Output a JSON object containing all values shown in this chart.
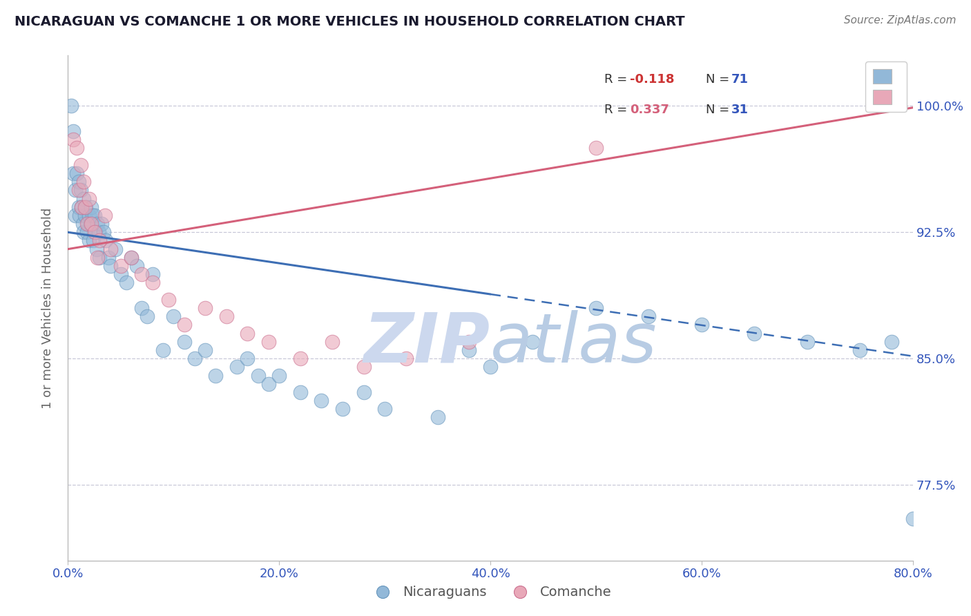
{
  "title": "NICARAGUAN VS COMANCHE 1 OR MORE VEHICLES IN HOUSEHOLD CORRELATION CHART",
  "source_text": "Source: ZipAtlas.com",
  "ylabel": "1 or more Vehicles in Household",
  "xlim": [
    0.0,
    80.0
  ],
  "ylim": [
    73.0,
    103.0
  ],
  "xtick_vals": [
    0.0,
    20.0,
    40.0,
    60.0,
    80.0
  ],
  "xtick_labels": [
    "0.0%",
    "20.0%",
    "40.0%",
    "60.0%",
    "80.0%"
  ],
  "ytick_vals": [
    77.5,
    85.0,
    92.5,
    100.0
  ],
  "ytick_labels": [
    "77.5%",
    "85.0%",
    "92.5%",
    "100.0%"
  ],
  "legend_r1": "R = -0.118",
  "legend_n1": "N = 71",
  "legend_r2": "R = 0.337",
  "legend_n2": "N = 31",
  "legend_labels_bottom": [
    "Nicaraguans",
    "Comanche"
  ],
  "blue_color": "#92b8d8",
  "blue_edge_color": "#6896bc",
  "pink_color": "#e8a8b8",
  "pink_edge_color": "#cc7090",
  "blue_line_color": "#3d6eb4",
  "pink_line_color": "#d4607a",
  "tick_color": "#3355bb",
  "grid_color": "#c8c8d8",
  "background_color": "#ffffff",
  "watermark_color": "#ccd8ee",
  "legend_r_color": "#cc3333",
  "legend_n_color": "#3355bb",
  "blue_intercept": 92.5,
  "blue_slope": -0.092,
  "pink_intercept": 91.5,
  "pink_slope": 0.105,
  "blue_x": [
    0.3,
    0.5,
    0.5,
    0.7,
    0.7,
    0.8,
    1.0,
    1.0,
    1.1,
    1.2,
    1.3,
    1.4,
    1.5,
    1.5,
    1.6,
    1.7,
    1.8,
    1.9,
    2.0,
    2.0,
    2.1,
    2.2,
    2.3,
    2.4,
    2.5,
    2.6,
    2.7,
    2.8,
    2.9,
    3.0,
    3.2,
    3.4,
    3.6,
    3.8,
    4.0,
    4.5,
    5.0,
    5.5,
    6.0,
    6.5,
    7.0,
    7.5,
    8.0,
    9.0,
    10.0,
    11.0,
    12.0,
    13.0,
    14.0,
    16.0,
    17.0,
    18.0,
    19.0,
    20.0,
    22.0,
    24.0,
    26.0,
    28.0,
    30.0,
    35.0,
    38.0,
    40.0,
    44.0,
    50.0,
    55.0,
    60.0,
    65.0,
    70.0,
    75.0,
    78.0,
    80.0
  ],
  "blue_y": [
    100.0,
    98.5,
    96.0,
    95.0,
    93.5,
    96.0,
    95.5,
    94.0,
    93.5,
    95.0,
    94.0,
    93.0,
    94.5,
    92.5,
    93.5,
    94.0,
    92.5,
    93.0,
    93.5,
    92.0,
    93.0,
    94.0,
    93.5,
    92.0,
    93.5,
    92.5,
    91.5,
    93.0,
    92.5,
    91.0,
    93.0,
    92.5,
    92.0,
    91.0,
    90.5,
    91.5,
    90.0,
    89.5,
    91.0,
    90.5,
    88.0,
    87.5,
    90.0,
    85.5,
    87.5,
    86.0,
    85.0,
    85.5,
    84.0,
    84.5,
    85.0,
    84.0,
    83.5,
    84.0,
    83.0,
    82.5,
    82.0,
    83.0,
    82.0,
    81.5,
    85.5,
    84.5,
    86.0,
    88.0,
    87.5,
    87.0,
    86.5,
    86.0,
    85.5,
    86.0,
    75.5
  ],
  "pink_x": [
    0.5,
    0.8,
    1.0,
    1.2,
    1.3,
    1.5,
    1.6,
    1.8,
    2.0,
    2.2,
    2.5,
    2.8,
    3.0,
    3.5,
    4.0,
    5.0,
    6.0,
    7.0,
    8.0,
    9.5,
    11.0,
    13.0,
    15.0,
    17.0,
    19.0,
    22.0,
    25.0,
    28.0,
    32.0,
    38.0,
    50.0
  ],
  "pink_y": [
    98.0,
    97.5,
    95.0,
    96.5,
    94.0,
    95.5,
    94.0,
    93.0,
    94.5,
    93.0,
    92.5,
    91.0,
    92.0,
    93.5,
    91.5,
    90.5,
    91.0,
    90.0,
    89.5,
    88.5,
    87.0,
    88.0,
    87.5,
    86.5,
    86.0,
    85.0,
    86.0,
    84.5,
    85.0,
    86.0,
    97.5
  ]
}
